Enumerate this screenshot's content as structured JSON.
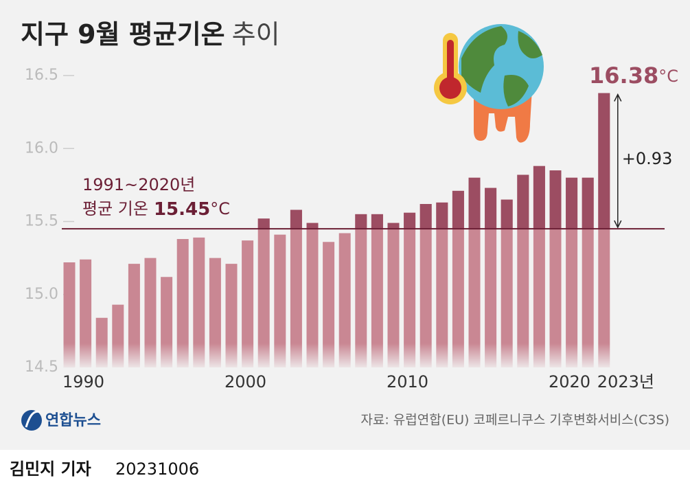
{
  "chart_data": {
    "type": "bar",
    "title": "지구 9월 평균기온",
    "title_suffix": "추이",
    "categories": [
      "1990",
      null,
      null,
      null,
      null,
      null,
      null,
      null,
      null,
      null,
      "2000",
      null,
      null,
      null,
      null,
      null,
      null,
      null,
      null,
      null,
      "2010",
      null,
      null,
      null,
      null,
      null,
      null,
      null,
      null,
      null,
      "2020",
      null,
      null,
      "2023년"
    ],
    "values": [
      15.22,
      15.24,
      14.84,
      14.93,
      15.21,
      15.25,
      15.12,
      15.38,
      15.39,
      15.25,
      15.21,
      15.37,
      15.52,
      15.41,
      15.58,
      15.49,
      15.36,
      15.42,
      15.55,
      15.55,
      15.49,
      15.56,
      15.62,
      15.63,
      15.71,
      15.8,
      15.73,
      15.65,
      15.82,
      15.88,
      15.85,
      15.8,
      15.8,
      16.38
    ],
    "color": "#c98793",
    "highlight_color": "#9c4d62",
    "ylim": [
      14.5,
      16.5
    ],
    "yticks": [
      14.5,
      {
        "value": 15.0,
        "label": "15.0"
      },
      15.5,
      {
        "value": 16.0,
        "label": "16.0"
      },
      16.5
    ],
    "reference_line": {
      "value": 15.45,
      "color": "#6b1f35",
      "label_period": "1991~2020년",
      "label_name": "평균 기온",
      "value_label": "15.45",
      "unit": "°C"
    },
    "peak_label": {
      "value_label": "16.38",
      "unit": "°C"
    },
    "difference_label": "+0.93"
  },
  "source": "자료: 유럽연합(EU) 코페르니쿠스 기후변화서비스(C3S)",
  "logo": "연합뉴스",
  "byline": {
    "reporter": "김민지 기자",
    "date": "20231006"
  }
}
